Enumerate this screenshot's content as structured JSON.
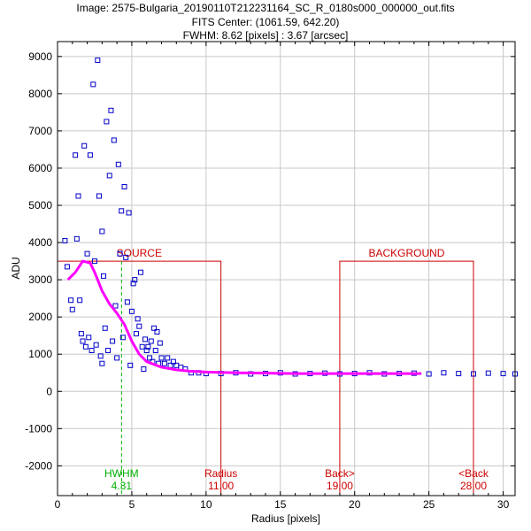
{
  "header": {
    "title_line1": "Image: 2575-Bulgaria_20190110T212231164_SC_R_0180s000_000000_out.fits",
    "title_line2": "FITS Center: (1061.59,  642.20)",
    "title_line3": "FWHM: 8.62 [pixels] : 3.67 [arcsec]"
  },
  "chart_data": {
    "type": "scatter",
    "xlabel": "Radius [pixels]",
    "ylabel": "ADU",
    "xlim": [
      0,
      30.8
    ],
    "ylim": [
      -2800,
      9400
    ],
    "xticks": [
      0,
      5,
      10,
      15,
      20,
      25,
      30
    ],
    "yticks": [
      -2000,
      -1000,
      0,
      1000,
      2000,
      3000,
      4000,
      5000,
      6000,
      7000,
      8000,
      9000
    ],
    "grid": true,
    "colors": {
      "points": "#0000c8",
      "profile": "#ff00ff",
      "aperture": "#cc0000",
      "hwhm": "#00b000"
    },
    "regions": [
      {
        "name": "SOURCE",
        "x0": 0,
        "x1": 11.0,
        "level": 3500
      },
      {
        "name": "BACKGROUND",
        "x0": 19.0,
        "x1": 28.0,
        "level": 3500
      }
    ],
    "markers": [
      {
        "name": "HWHM",
        "value": 4.31,
        "label": "4.31",
        "color": "#00b000",
        "style": "dashed"
      },
      {
        "name": "Radius",
        "value": 11.0,
        "label": "11.00",
        "color": "#cc0000"
      },
      {
        "name": "Back>",
        "value": 19.0,
        "label": "19.00",
        "color": "#cc0000"
      },
      {
        "name": "<Back",
        "value": 28.0,
        "label": "28.00",
        "color": "#cc0000"
      }
    ],
    "series": [
      {
        "values_x": [
          0.5,
          0.65,
          0.9,
          1.0,
          1.2,
          1.3,
          1.4,
          1.5,
          1.6,
          1.7,
          1.8,
          1.9,
          2.0,
          2.1,
          2.2,
          2.3,
          2.4,
          2.5,
          2.6,
          2.7,
          2.8,
          2.9,
          3.0,
          3.0,
          3.1,
          3.2,
          3.3,
          3.4,
          3.5,
          3.6,
          3.7,
          3.8,
          3.9,
          4.0,
          4.1,
          4.2,
          4.3,
          4.4,
          4.5,
          4.6,
          4.7,
          4.8,
          4.9,
          5.0,
          5.1,
          5.2,
          5.3,
          5.4,
          5.5,
          5.6,
          5.7,
          5.8,
          5.9,
          6.0,
          6.1,
          6.2,
          6.3,
          6.4,
          6.5,
          6.6,
          6.7,
          6.8,
          6.9,
          7.0,
          7.2,
          7.4,
          7.6,
          7.8,
          8.0,
          8.3,
          8.6,
          9.0,
          9.5,
          10.0,
          11.0,
          12.0,
          13.0,
          14.0,
          15.0,
          16.0,
          17.0,
          18.0,
          19.0,
          20.0,
          21.0,
          22.0,
          23.0,
          24.0,
          25.0,
          26.0,
          27.0,
          28.0,
          29.0,
          30.0,
          30.8
        ],
        "values_y": [
          4050,
          3350,
          2450,
          2200,
          6350,
          4100,
          5250,
          2450,
          1550,
          1350,
          6600,
          1200,
          3700,
          1450,
          6350,
          1100,
          8250,
          3500,
          1250,
          8900,
          5250,
          950,
          4300,
          750,
          3100,
          1700,
          7250,
          1100,
          5800,
          7550,
          1350,
          6750,
          2300,
          900,
          6100,
          3700,
          4850,
          1450,
          5500,
          3600,
          2400,
          4800,
          700,
          2150,
          2900,
          3000,
          1550,
          1950,
          1750,
          3200,
          1200,
          600,
          1400,
          1100,
          1200,
          900,
          1350,
          800,
          1700,
          1100,
          1600,
          750,
          1300,
          900,
          750,
          900,
          700,
          800,
          700,
          650,
          600,
          500,
          500,
          480,
          480,
          500,
          470,
          480,
          500,
          470,
          480,
          490,
          470,
          480,
          500,
          470,
          480,
          490,
          470,
          500,
          480,
          470,
          490,
          480,
          470
        ]
      },
      {
        "name": "profile",
        "values_x": [
          0.7,
          1.2,
          1.7,
          2.2,
          2.5,
          3.0,
          3.5,
          4.0,
          4.5,
          5.0,
          5.5,
          6.0,
          7.0,
          8.0,
          9.0,
          10.0,
          12.0,
          14.0,
          16.0,
          18.0,
          20.0,
          22.0,
          24.5
        ],
        "values_y": [
          3000,
          3200,
          3500,
          3450,
          3200,
          2700,
          2350,
          2100,
          1800,
          1350,
          1000,
          800,
          650,
          580,
          540,
          520,
          500,
          490,
          480,
          480,
          480,
          480,
          480
        ]
      }
    ]
  }
}
